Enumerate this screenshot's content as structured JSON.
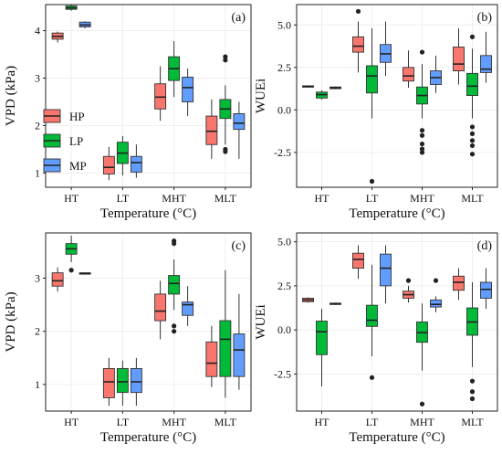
{
  "colors": {
    "HP": "#F8766D",
    "LP": "#00BA38",
    "MP": "#619CFF"
  },
  "legend": {
    "items": [
      "HP",
      "LP",
      "MP"
    ]
  },
  "chart_data": [
    {
      "type": "box",
      "tag": "(a)",
      "xlabel": "Temperature (°C)",
      "ylabel": "VPD (kPa)",
      "ylim": [
        0.7,
        4.55
      ],
      "yticks": [
        1,
        2,
        3,
        4
      ],
      "categories": [
        "HT",
        "LT",
        "MHT",
        "MLT"
      ],
      "legend_in_panel": true,
      "series": [
        {
          "name": "HP",
          "boxes": [
            {
              "q1": 3.82,
              "med": 3.88,
              "q3": 3.95,
              "wlo": 3.75,
              "whi": 3.98,
              "out": []
            },
            {
              "q1": 0.98,
              "med": 1.12,
              "q3": 1.35,
              "wlo": 0.85,
              "whi": 1.55,
              "out": []
            },
            {
              "q1": 2.35,
              "med": 2.6,
              "q3": 2.88,
              "wlo": 2.1,
              "whi": 3.25,
              "out": []
            },
            {
              "q1": 1.6,
              "med": 1.88,
              "q3": 2.2,
              "wlo": 1.3,
              "whi": 2.55,
              "out": []
            }
          ]
        },
        {
          "name": "LP",
          "boxes": [
            {
              "q1": 4.45,
              "med": 4.48,
              "q3": 4.52,
              "wlo": 4.42,
              "whi": 4.55,
              "out": []
            },
            {
              "q1": 1.2,
              "med": 1.42,
              "q3": 1.65,
              "wlo": 0.95,
              "whi": 1.78,
              "out": []
            },
            {
              "q1": 2.95,
              "med": 3.2,
              "q3": 3.45,
              "wlo": 2.6,
              "whi": 3.78,
              "out": []
            },
            {
              "q1": 2.15,
              "med": 2.35,
              "q3": 2.55,
              "wlo": 1.6,
              "whi": 2.85,
              "out": [
                3.38,
                3.45,
                1.5,
                1.45
              ]
            }
          ]
        },
        {
          "name": "MP",
          "boxes": [
            {
              "q1": 4.08,
              "med": 4.12,
              "q3": 4.18,
              "wlo": 4.05,
              "whi": 4.2,
              "out": []
            },
            {
              "q1": 1.02,
              "med": 1.22,
              "q3": 1.35,
              "wlo": 0.9,
              "whi": 1.6,
              "out": []
            },
            {
              "q1": 2.5,
              "med": 2.8,
              "q3": 3.02,
              "wlo": 2.2,
              "whi": 3.2,
              "out": []
            },
            {
              "q1": 1.92,
              "med": 2.05,
              "q3": 2.25,
              "wlo": 1.3,
              "whi": 2.5,
              "out": []
            }
          ]
        }
      ]
    },
    {
      "type": "box",
      "tag": "(b)",
      "xlabel": "Temperature (°C)",
      "ylabel": "WUEi",
      "ylim": [
        -4.55,
        6.2
      ],
      "yticks": [
        -2.5,
        0.0,
        2.5,
        5.0
      ],
      "categories": [
        "HT",
        "LT",
        "MHT",
        "MLT"
      ],
      "legend_in_panel": false,
      "series": [
        {
          "name": "HP",
          "boxes": [
            {
              "q1": 1.35,
              "med": 1.38,
              "q3": 1.42,
              "wlo": 1.32,
              "whi": 1.45,
              "out": []
            },
            {
              "q1": 3.4,
              "med": 3.75,
              "q3": 4.3,
              "wlo": 2.2,
              "whi": 5.2,
              "out": [
                5.8
              ]
            },
            {
              "q1": 1.7,
              "med": 2.0,
              "q3": 2.5,
              "wlo": 1.3,
              "whi": 3.5,
              "out": []
            },
            {
              "q1": 2.3,
              "med": 2.7,
              "q3": 3.7,
              "wlo": 1.5,
              "whi": 4.8,
              "out": []
            }
          ]
        },
        {
          "name": "LP",
          "boxes": [
            {
              "q1": 0.7,
              "med": 0.9,
              "q3": 1.05,
              "wlo": 0.6,
              "whi": 1.15,
              "out": []
            },
            {
              "q1": 1.0,
              "med": 2.0,
              "q3": 2.6,
              "wlo": -0.5,
              "whi": 4.8,
              "out": [
                -4.2
              ]
            },
            {
              "q1": 0.35,
              "med": 0.85,
              "q3": 1.35,
              "wlo": -0.5,
              "whi": 2.7,
              "out": [
                3.4,
                -1.2,
                -1.5,
                -2.0,
                -2.3,
                -2.5
              ]
            },
            {
              "q1": 0.85,
              "med": 1.4,
              "q3": 2.15,
              "wlo": -0.5,
              "whi": 3.6,
              "out": [
                4.3,
                -1.0,
                -1.4,
                -1.8,
                -2.1,
                -2.6
              ]
            }
          ]
        },
        {
          "name": "MP",
          "boxes": [
            {
              "q1": 1.25,
              "med": 1.3,
              "q3": 1.35,
              "wlo": 1.22,
              "whi": 1.38,
              "out": []
            },
            {
              "q1": 2.8,
              "med": 3.3,
              "q3": 3.85,
              "wlo": 2.0,
              "whi": 5.2,
              "out": []
            },
            {
              "q1": 1.5,
              "med": 1.9,
              "q3": 2.3,
              "wlo": 1.0,
              "whi": 3.2,
              "out": []
            },
            {
              "q1": 2.2,
              "med": 2.4,
              "q3": 3.2,
              "wlo": 1.6,
              "whi": 4.6,
              "out": []
            }
          ]
        }
      ]
    },
    {
      "type": "box",
      "tag": "(c)",
      "xlabel": "Temperature (°C)",
      "ylabel": "VPD (kPa)",
      "ylim": [
        0.5,
        3.85
      ],
      "yticks": [
        1,
        2,
        3
      ],
      "categories": [
        "HT",
        "LT",
        "MHT",
        "MLT"
      ],
      "legend_in_panel": false,
      "series": [
        {
          "name": "HP",
          "boxes": [
            {
              "q1": 2.85,
              "med": 2.95,
              "q3": 3.1,
              "wlo": 2.75,
              "whi": 3.2,
              "out": []
            },
            {
              "q1": 0.75,
              "med": 1.05,
              "q3": 1.3,
              "wlo": 0.6,
              "whi": 1.5,
              "out": []
            },
            {
              "q1": 2.2,
              "med": 2.38,
              "q3": 2.7,
              "wlo": 1.85,
              "whi": 2.95,
              "out": []
            },
            {
              "q1": 1.15,
              "med": 1.4,
              "q3": 1.8,
              "wlo": 0.95,
              "whi": 2.1,
              "out": []
            }
          ]
        },
        {
          "name": "LP",
          "boxes": [
            {
              "q1": 3.45,
              "med": 3.55,
              "q3": 3.65,
              "wlo": 3.3,
              "whi": 3.8,
              "out": [
                3.15
              ]
            },
            {
              "q1": 0.85,
              "med": 1.05,
              "q3": 1.3,
              "wlo": 0.6,
              "whi": 1.45,
              "out": []
            },
            {
              "q1": 2.7,
              "med": 2.9,
              "q3": 3.05,
              "wlo": 2.4,
              "whi": 3.35,
              "out": [
                3.65,
                3.7,
                2.1,
                2.0
              ]
            },
            {
              "q1": 1.15,
              "med": 1.85,
              "q3": 2.2,
              "wlo": 0.75,
              "whi": 3.15,
              "out": []
            }
          ]
        },
        {
          "name": "MP",
          "boxes": [
            {
              "q1": 3.08,
              "med": 3.09,
              "q3": 3.1,
              "wlo": 3.07,
              "whi": 3.11,
              "out": []
            },
            {
              "q1": 0.85,
              "med": 1.05,
              "q3": 1.3,
              "wlo": 0.6,
              "whi": 1.5,
              "out": []
            },
            {
              "q1": 2.3,
              "med": 2.5,
              "q3": 2.55,
              "wlo": 2.1,
              "whi": 2.85,
              "out": []
            },
            {
              "q1": 1.15,
              "med": 1.65,
              "q3": 1.95,
              "wlo": 0.9,
              "whi": 2.7,
              "out": []
            }
          ]
        }
      ]
    },
    {
      "type": "box",
      "tag": "(d)",
      "xlabel": "Temperature (°C)",
      "ylabel": "WUEi",
      "ylim": [
        -4.6,
        5.5
      ],
      "yticks": [
        -2.5,
        0.0,
        2.5,
        5.0
      ],
      "categories": [
        "HT",
        "LT",
        "MHT",
        "MLT"
      ],
      "legend_in_panel": false,
      "series": [
        {
          "name": "HP",
          "boxes": [
            {
              "q1": 1.6,
              "med": 1.7,
              "q3": 1.8,
              "wlo": 1.55,
              "whi": 1.85,
              "out": []
            },
            {
              "q1": 3.5,
              "med": 4.0,
              "q3": 4.35,
              "wlo": 2.9,
              "whi": 4.8,
              "out": []
            },
            {
              "q1": 1.8,
              "med": 2.0,
              "q3": 2.2,
              "wlo": 1.55,
              "whi": 2.5,
              "out": [
                2.8
              ]
            },
            {
              "q1": 2.25,
              "med": 2.7,
              "q3": 3.05,
              "wlo": 1.7,
              "whi": 3.5,
              "out": []
            }
          ]
        },
        {
          "name": "LP",
          "boxes": [
            {
              "q1": -1.4,
              "med": -0.1,
              "q3": 0.5,
              "wlo": -3.2,
              "whi": 1.2,
              "out": []
            },
            {
              "q1": 0.2,
              "med": 0.55,
              "q3": 1.4,
              "wlo": -1.5,
              "whi": 3.7,
              "out": [
                -2.7
              ]
            },
            {
              "q1": -0.7,
              "med": -0.15,
              "q3": 0.45,
              "wlo": -2.3,
              "whi": 1.5,
              "out": [
                -4.2
              ]
            },
            {
              "q1": -0.3,
              "med": 0.45,
              "q3": 1.25,
              "wlo": -2.1,
              "whi": 2.7,
              "out": [
                -2.9,
                -3.5,
                -3.9
              ]
            }
          ]
        },
        {
          "name": "MP",
          "boxes": [
            {
              "q1": 1.45,
              "med": 1.48,
              "q3": 1.52,
              "wlo": 1.42,
              "whi": 1.55,
              "out": []
            },
            {
              "q1": 2.5,
              "med": 3.5,
              "q3": 4.3,
              "wlo": 1.5,
              "whi": 4.8,
              "out": []
            },
            {
              "q1": 1.3,
              "med": 1.45,
              "q3": 1.7,
              "wlo": 1.0,
              "whi": 1.9,
              "out": [
                2.8
              ]
            },
            {
              "q1": 1.8,
              "med": 2.3,
              "q3": 2.7,
              "wlo": 1.2,
              "whi": 3.5,
              "out": []
            }
          ]
        }
      ]
    }
  ]
}
